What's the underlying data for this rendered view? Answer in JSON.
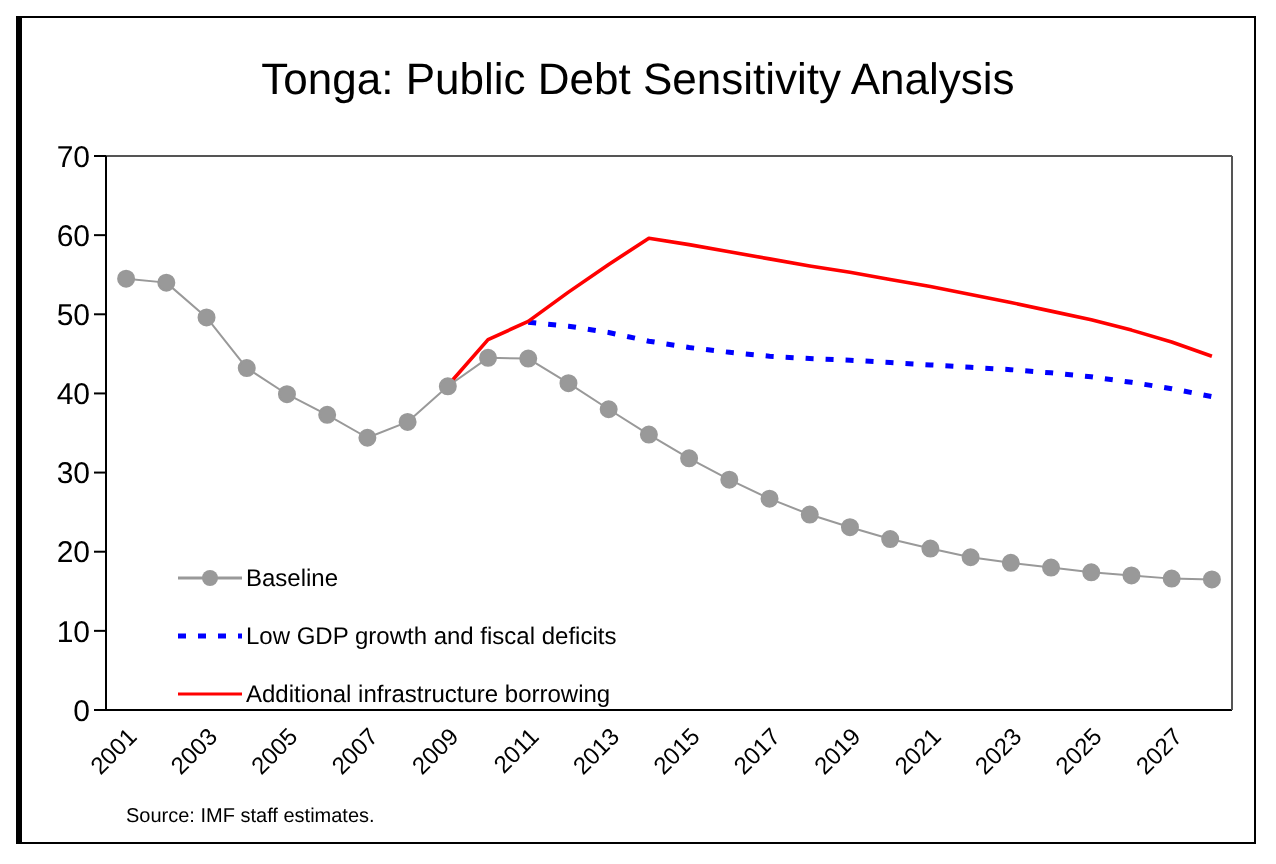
{
  "chart_data": {
    "type": "line",
    "title": "Tonga: Public Debt Sensitivity Analysis",
    "categories": [
      "2001",
      null,
      "2003",
      null,
      "2005",
      null,
      "2007",
      null,
      "2009",
      null,
      "2011",
      null,
      "2013",
      null,
      "2015",
      null,
      "2017",
      null,
      "2019",
      null,
      "2021",
      null,
      "2023",
      null,
      "2025",
      null,
      "2027",
      null
    ],
    "series": [
      {
        "name": "Baseline",
        "color": "#999999",
        "marker": "circle",
        "line_style": "solid",
        "values": [
          54.5,
          54,
          49.6,
          43.2,
          39.9,
          37.3,
          34.4,
          36.4,
          40.9,
          44.5,
          44.4,
          41.3,
          38,
          34.8,
          31.8,
          29.1,
          26.7,
          24.7,
          23.1,
          21.6,
          20.4,
          19.3,
          18.6,
          18.0,
          17.4,
          17.0,
          16.6,
          16.5
        ]
      },
      {
        "name": "Low GDP growth and fiscal deficits",
        "color": "#0000ff",
        "marker": "none",
        "line_style": "dashed",
        "values": [
          null,
          null,
          null,
          null,
          null,
          null,
          null,
          null,
          null,
          null,
          49,
          48.5,
          47.7,
          46.6,
          45.8,
          45.2,
          44.7,
          44.4,
          44.2,
          43.9,
          43.6,
          43.3,
          43.0,
          42.6,
          42.1,
          41.4,
          40.6,
          39.6
        ]
      },
      {
        "name": "Additional infrastructure borrowing",
        "color": "#ff0000",
        "marker": "none",
        "line_style": "solid",
        "values": [
          null,
          null,
          null,
          null,
          null,
          null,
          null,
          null,
          41,
          46.8,
          49.1,
          52.8,
          56.3,
          59.6,
          58.8,
          57.9,
          57.0,
          56.1,
          55.3,
          54.4,
          53.5,
          52.5,
          51.5,
          50.4,
          49.3,
          48.0,
          46.5,
          44.7
        ]
      }
    ],
    "ylim": [
      0,
      70
    ],
    "yticks": [
      0,
      10,
      20,
      30,
      40,
      50,
      60,
      70
    ],
    "legend": "bottom left",
    "annotations": [
      "Source: IMF staff estimates."
    ]
  }
}
